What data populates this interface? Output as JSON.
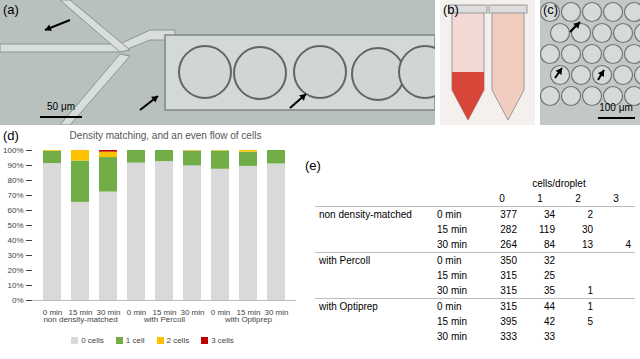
{
  "panels": {
    "a": {
      "label": "(a)",
      "scale_bar": "50 μm"
    },
    "b": {
      "label": "(b)"
    },
    "c": {
      "label": "(c)",
      "scale_bar": "100 μm"
    }
  },
  "chart_data": {
    "panel_label": "(d)",
    "type": "bar",
    "title": "Density matching, and an even flow of cells",
    "stacked": true,
    "grid": false,
    "legend": "bottom",
    "categories": [
      "0 min",
      "15 min",
      "30 min",
      "0 min",
      "15 min",
      "30 min",
      "0 min",
      "15 min",
      "30 min"
    ],
    "category_groups": [
      "non density-matched",
      "non density-matched",
      "non density-matched",
      "with Percoll",
      "with Percoll",
      "with Percoll",
      "with Optiprep",
      "with Optiprep",
      "with Optiprep"
    ],
    "ylim": [
      0,
      100
    ],
    "yticks": [
      {
        "value": 0,
        "label": "0%"
      },
      {
        "value": 10,
        "label": "10%"
      },
      {
        "value": 20,
        "label": "20%"
      },
      {
        "value": 30,
        "label": "30%"
      },
      {
        "value": 40,
        "label": "40%"
      },
      {
        "value": 50,
        "label": "50%"
      },
      {
        "value": 60,
        "label": "60%"
      },
      {
        "value": 70,
        "label": "70%"
      },
      {
        "value": 80,
        "label": "80%"
      },
      {
        "value": 90,
        "label": "90%"
      },
      {
        "value": 100,
        "label": "100%"
      }
    ],
    "series": [
      {
        "name": "0 cells",
        "color": "#d9d9d9",
        "values": [
          91.3,
          65.4,
          72.3,
          91.6,
          92.6,
          89.7,
          87.5,
          89.4,
          91.0
        ]
      },
      {
        "name": "1 cell",
        "color": "#70ad47",
        "values": [
          8.2,
          27.6,
          23.0,
          8.4,
          7.4,
          10.0,
          12.2,
          9.5,
          9.0
        ]
      },
      {
        "name": "2 cells",
        "color": "#ffc000",
        "values": [
          0.5,
          7.0,
          3.6,
          0,
          0,
          0.3,
          0.3,
          1.1,
          0
        ]
      },
      {
        "name": "3 cells",
        "color": "#c00000",
        "values": [
          0,
          0,
          1.1,
          0,
          0,
          0,
          0,
          0,
          0
        ]
      }
    ]
  },
  "table": {
    "panel_label": "(e)",
    "header": "cells/droplet",
    "columns": [
      "0",
      "1",
      "2",
      "3"
    ],
    "groups": [
      {
        "label": "non density-matched",
        "rows": [
          {
            "time": "0 min",
            "cells": [
              377,
              34,
              2,
              null
            ]
          },
          {
            "time": "15 min",
            "cells": [
              282,
              119,
              30,
              null
            ]
          },
          {
            "time": "30 min",
            "cells": [
              264,
              84,
              13,
              4
            ]
          }
        ]
      },
      {
        "label": "with Percoll",
        "rows": [
          {
            "time": "0 min",
            "cells": [
              350,
              32,
              null,
              null
            ]
          },
          {
            "time": "15 min",
            "cells": [
              315,
              25,
              null,
              null
            ]
          },
          {
            "time": "30 min",
            "cells": [
              315,
              35,
              1,
              null
            ]
          }
        ]
      },
      {
        "label": "with Optiprep",
        "rows": [
          {
            "time": "0 min",
            "cells": [
              315,
              44,
              1,
              null
            ]
          },
          {
            "time": "15 min",
            "cells": [
              395,
              42,
              5,
              null
            ]
          },
          {
            "time": "30 min",
            "cells": [
              333,
              33,
              null,
              null
            ]
          }
        ]
      }
    ]
  }
}
